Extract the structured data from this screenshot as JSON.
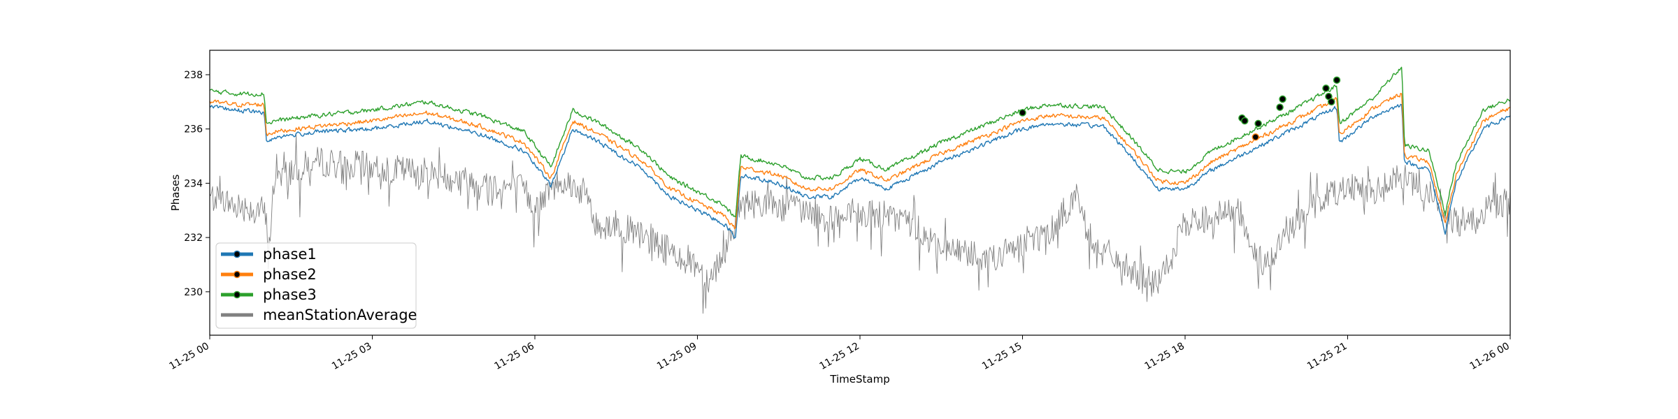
{
  "chart_data": {
    "type": "line",
    "title": "",
    "xlabel": "TimeStamp",
    "ylabel": "Phases",
    "x_range": [
      "2023-11-25 00:00",
      "2023-11-26 00:00"
    ],
    "xlim_hours": [
      0,
      24
    ],
    "ylim": [
      228.4,
      238.9
    ],
    "x_ticks": [
      {
        "h": 0,
        "label": "11-25 00"
      },
      {
        "h": 3,
        "label": "11-25 03"
      },
      {
        "h": 6,
        "label": "11-25 06"
      },
      {
        "h": 9,
        "label": "11-25 09"
      },
      {
        "h": 12,
        "label": "11-25 12"
      },
      {
        "h": 15,
        "label": "11-25 15"
      },
      {
        "h": 18,
        "label": "11-25 18"
      },
      {
        "h": 21,
        "label": "11-25 21"
      },
      {
        "h": 24,
        "label": "11-26 00"
      }
    ],
    "y_ticks": [
      230,
      232,
      234,
      236,
      238
    ],
    "grid": false,
    "legend_position": "lower-left",
    "series": [
      {
        "name": "phase1",
        "color": "#1f77b4",
        "marker": "dot",
        "x": [
          0,
          0.5,
          1,
          1.05,
          1.2,
          2,
          3,
          4,
          5,
          5.8,
          6.3,
          6.7,
          7.2,
          8,
          8.5,
          9,
          9.5,
          9.7,
          9.8,
          10.5,
          11,
          11.5,
          12,
          12.5,
          13,
          13.5,
          14,
          15,
          15.5,
          16.5,
          17,
          17.5,
          18,
          18.5,
          19,
          20,
          20.8,
          20.85,
          21.5,
          22,
          22.05,
          22.5,
          22.8,
          23,
          23.5,
          24
        ],
        "y": [
          236.8,
          236.7,
          236.6,
          235.5,
          235.7,
          235.9,
          236.0,
          236.3,
          235.8,
          235.2,
          233.9,
          236.0,
          235.5,
          234.5,
          233.5,
          233.0,
          232.5,
          232.0,
          234.3,
          234.0,
          233.5,
          233.5,
          234.2,
          233.8,
          234.3,
          234.8,
          235.2,
          236.0,
          236.2,
          236.1,
          235.0,
          233.8,
          233.8,
          234.5,
          235.0,
          236.0,
          236.8,
          235.5,
          236.5,
          236.9,
          234.8,
          234.5,
          232.2,
          234.0,
          236.0,
          236.5
        ],
        "markers": []
      },
      {
        "name": "phase2",
        "color": "#ff7f0e",
        "marker": "dot",
        "x": [
          0,
          0.5,
          1,
          1.05,
          1.2,
          2,
          3,
          4,
          5,
          5.8,
          6.3,
          6.7,
          7.2,
          8,
          8.5,
          9,
          9.5,
          9.7,
          9.8,
          10.5,
          11,
          11.5,
          12,
          12.5,
          13,
          13.5,
          14,
          15,
          15.5,
          16.5,
          17,
          17.5,
          18,
          18.5,
          19,
          20,
          20.8,
          20.85,
          21.5,
          22,
          22.05,
          22.5,
          22.8,
          23,
          23.5,
          24
        ],
        "y": [
          237.0,
          236.9,
          236.9,
          235.8,
          235.9,
          236.1,
          236.3,
          236.6,
          236.1,
          235.5,
          234.2,
          236.3,
          235.8,
          234.8,
          233.8,
          233.3,
          232.8,
          232.3,
          234.6,
          234.3,
          233.8,
          233.8,
          234.5,
          234.1,
          234.6,
          235.1,
          235.5,
          236.3,
          236.5,
          236.4,
          235.3,
          234.1,
          234.0,
          234.8,
          235.3,
          236.3,
          237.1,
          235.8,
          236.8,
          237.3,
          235.0,
          234.8,
          232.5,
          234.3,
          236.3,
          236.8
        ],
        "markers": [
          {
            "x": 19.3,
            "y": 235.7
          }
        ]
      },
      {
        "name": "phase3",
        "color": "#2ca02c",
        "marker": "dot",
        "x": [
          0,
          0.5,
          1,
          1.05,
          1.2,
          2,
          3,
          4,
          5,
          5.8,
          6.3,
          6.7,
          7.2,
          8,
          8.5,
          9,
          9.5,
          9.7,
          9.8,
          10.5,
          11,
          11.5,
          12,
          12.5,
          13,
          13.5,
          14,
          15,
          15.5,
          16.5,
          17,
          17.5,
          18,
          18.5,
          19,
          20,
          20.8,
          20.85,
          21.5,
          22,
          22.05,
          22.5,
          22.8,
          23,
          23.5,
          24
        ],
        "y": [
          237.4,
          237.3,
          237.3,
          236.2,
          236.3,
          236.5,
          236.7,
          237.0,
          236.5,
          235.9,
          234.6,
          236.7,
          236.2,
          235.2,
          234.2,
          233.7,
          233.2,
          232.7,
          235.0,
          234.7,
          234.2,
          234.2,
          234.9,
          234.5,
          235.0,
          235.5,
          235.9,
          236.7,
          236.9,
          236.8,
          235.7,
          234.5,
          234.4,
          235.2,
          235.7,
          236.7,
          237.6,
          236.2,
          237.2,
          238.3,
          235.4,
          235.2,
          232.9,
          234.7,
          236.7,
          237.1
        ],
        "markers": [
          {
            "x": 15.0,
            "y": 236.6
          },
          {
            "x": 19.05,
            "y": 236.4
          },
          {
            "x": 19.1,
            "y": 236.3
          },
          {
            "x": 19.35,
            "y": 236.2
          },
          {
            "x": 19.75,
            "y": 236.8
          },
          {
            "x": 19.8,
            "y": 237.1
          },
          {
            "x": 20.6,
            "y": 237.5
          },
          {
            "x": 20.65,
            "y": 237.2
          },
          {
            "x": 20.7,
            "y": 237.0
          },
          {
            "x": 20.8,
            "y": 237.8
          }
        ]
      },
      {
        "name": "meanStationAverage",
        "color": "#808080",
        "marker": "none",
        "x": [
          0,
          0.5,
          1,
          1.1,
          1.2,
          2,
          3,
          4,
          5,
          5.8,
          6.0,
          6.5,
          7.0,
          7.1,
          7.5,
          8,
          8.5,
          9,
          9.2,
          9.5,
          9.8,
          10.2,
          11,
          11.5,
          12,
          12.5,
          13,
          13.5,
          14,
          14.5,
          15,
          15.5,
          16,
          16.2,
          16.5,
          17,
          17.5,
          18,
          18.5,
          19,
          19.2,
          19.5,
          20,
          20.5,
          21,
          21.5,
          22,
          22.5,
          23,
          23.5,
          24
        ],
        "y": [
          233.5,
          233.2,
          233.0,
          231.8,
          234.3,
          234.8,
          234.6,
          234.4,
          234.0,
          233.8,
          233.0,
          234.2,
          233.5,
          232.4,
          232.5,
          232.0,
          231.5,
          231.0,
          230.4,
          231.5,
          233.2,
          233.3,
          233.0,
          232.6,
          232.8,
          232.8,
          232.5,
          231.5,
          231.5,
          231.2,
          231.8,
          232.2,
          233.6,
          232.2,
          231.5,
          230.8,
          230.2,
          232.5,
          232.8,
          233.0,
          231.5,
          231.0,
          232.5,
          233.4,
          234.0,
          233.6,
          234.3,
          233.5,
          232.5,
          233.0,
          233.4
        ],
        "markers": []
      }
    ]
  }
}
